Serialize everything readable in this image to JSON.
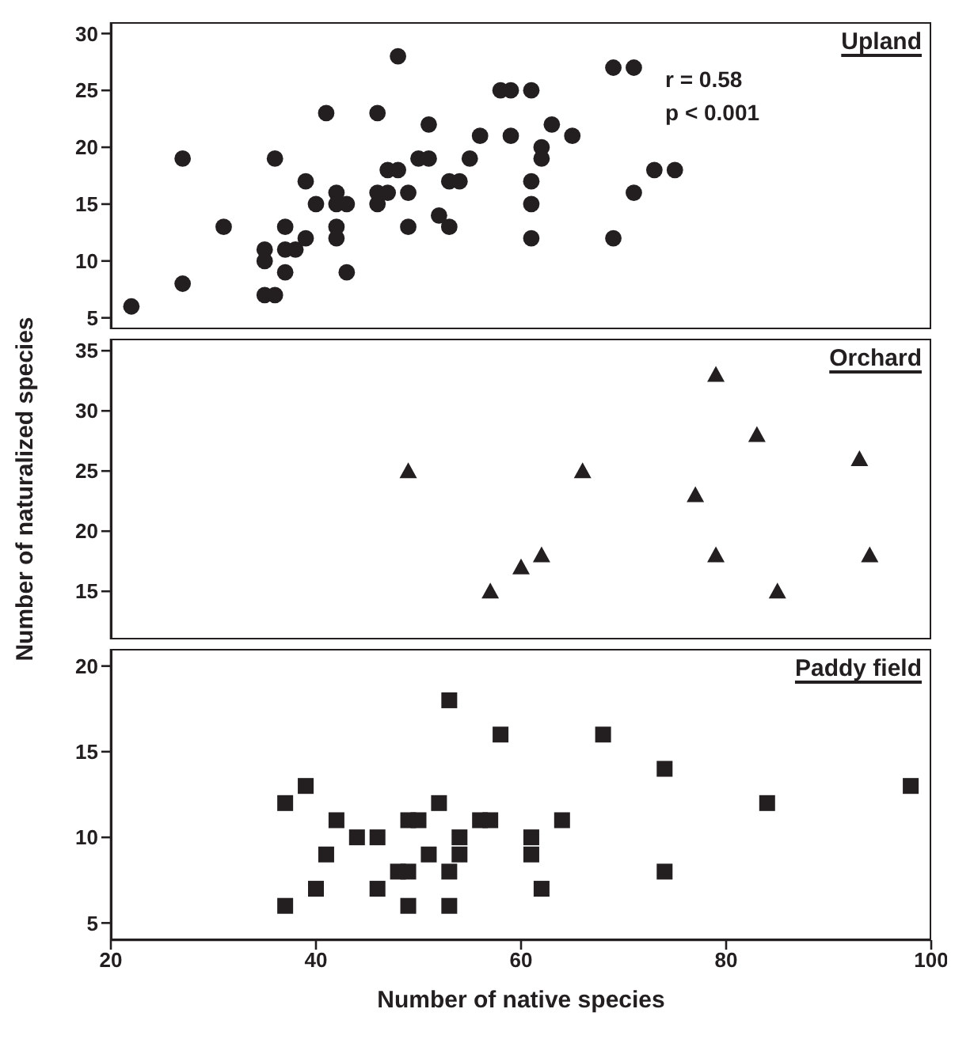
{
  "chart_data": [
    {
      "type": "scatter",
      "title": "Upland",
      "marker": "circle",
      "grid": false,
      "tick_labels": "y",
      "annotations": [
        "r = 0.58",
        "p < 0.001"
      ],
      "xlim": [
        20,
        100
      ],
      "xticks": [
        20,
        40,
        60,
        80,
        100
      ],
      "ylim": [
        4,
        31
      ],
      "yticks": [
        5,
        10,
        15,
        20,
        25,
        30
      ],
      "series": [
        {
          "color": "#231f20",
          "x": [
            22,
            27,
            27,
            31,
            35,
            35,
            35,
            36,
            36,
            37,
            37,
            37,
            38,
            39,
            39,
            40,
            41,
            42,
            42,
            42,
            42,
            43,
            43,
            46,
            46,
            46,
            47,
            47,
            48,
            48,
            49,
            49,
            50,
            51,
            51,
            52,
            53,
            53,
            54,
            55,
            56,
            58,
            59,
            59,
            61,
            61,
            61,
            61,
            62,
            62,
            63,
            65,
            69,
            71,
            69,
            71,
            73,
            75
          ],
          "values": [
            6,
            19,
            8,
            13,
            11,
            10,
            7,
            7,
            19,
            13,
            11,
            9,
            11,
            12,
            17,
            15,
            23,
            16,
            15,
            13,
            12,
            15,
            9,
            23,
            16,
            15,
            16,
            18,
            18,
            28,
            16,
            13,
            19,
            19,
            22,
            14,
            17,
            13,
            17,
            19,
            21,
            25,
            25,
            21,
            25,
            17,
            15,
            12,
            20,
            19,
            22,
            21,
            27,
            27,
            12,
            16,
            18,
            18
          ]
        }
      ]
    },
    {
      "type": "scatter",
      "title": "Orchard",
      "ylabel": "Number of naturalized species",
      "marker": "triangle",
      "grid": false,
      "tick_labels": "y",
      "xlim": [
        20,
        100
      ],
      "xticks": [
        20,
        40,
        60,
        80,
        100
      ],
      "ylim": [
        11,
        36
      ],
      "yticks": [
        15,
        20,
        25,
        30,
        35
      ],
      "series": [
        {
          "color": "#231f20",
          "x": [
            49,
            57,
            60,
            62,
            66,
            77,
            79,
            79,
            83,
            85,
            93,
            94
          ],
          "values": [
            25,
            15,
            17,
            18,
            25,
            23,
            33,
            18,
            28,
            15,
            26,
            18
          ]
        }
      ]
    },
    {
      "type": "scatter",
      "title": "Paddy field",
      "xlabel": "Number of native species",
      "marker": "square",
      "grid": false,
      "xlim": [
        20,
        100
      ],
      "xticks": [
        20,
        40,
        60,
        80,
        100
      ],
      "ylim": [
        4,
        21
      ],
      "yticks": [
        5,
        10,
        15,
        20
      ],
      "series": [
        {
          "color": "#231f20",
          "x": [
            37,
            37,
            39,
            40,
            41,
            42,
            44,
            46,
            46,
            48,
            49,
            49,
            49,
            50,
            51,
            52,
            53,
            53,
            53,
            54,
            54,
            56,
            57,
            58,
            61,
            61,
            62,
            64,
            68,
            74,
            74,
            84,
            98
          ],
          "values": [
            6,
            12,
            13,
            7,
            9,
            11,
            10,
            10,
            7,
            8,
            8,
            6,
            11,
            11,
            9,
            12,
            18,
            8,
            6,
            10,
            9,
            11,
            11,
            16,
            10,
            9,
            7,
            11,
            16,
            14,
            8,
            12,
            13
          ]
        }
      ]
    }
  ]
}
